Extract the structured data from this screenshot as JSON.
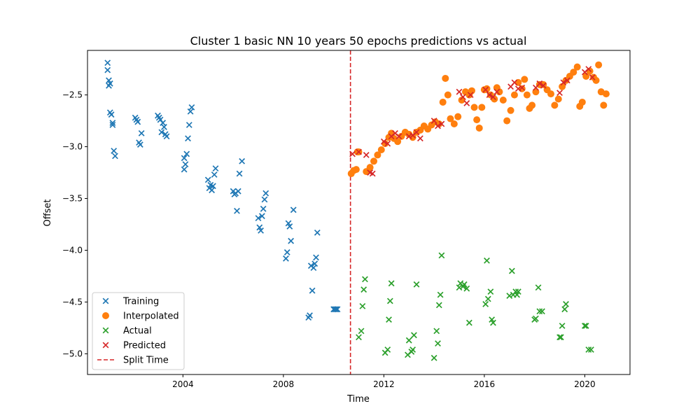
{
  "chart_data": {
    "type": "scatter",
    "title": "Cluster 1 basic NN 10 years 50 epochs predictions vs actual",
    "xlabel": "Time",
    "ylabel": "Offset",
    "xlim": [
      2000.2,
      2021.8
    ],
    "ylim": [
      -5.2,
      -2.07
    ],
    "xticks": [
      2004,
      2008,
      2012,
      2016,
      2020
    ],
    "yticks": [
      -2.5,
      -3.0,
      -3.5,
      -4.0,
      -4.5,
      -5.0
    ],
    "xtick_labels": [
      "2004",
      "2008",
      "2012",
      "2016",
      "2020"
    ],
    "ytick_labels": [
      "−2.5",
      "−3.0",
      "−3.5",
      "−4.0",
      "−4.5",
      "−5.0"
    ],
    "grid": false,
    "legend_position": "lower-left",
    "split_time": 2010.67,
    "series": [
      {
        "name": "Training",
        "marker": "x",
        "color": "#1f77b4",
        "points": [
          [
            2001.0,
            -2.19
          ],
          [
            2001.0,
            -2.26
          ],
          [
            2001.05,
            -2.36
          ],
          [
            2001.05,
            -2.41
          ],
          [
            2001.1,
            -2.39
          ],
          [
            2001.1,
            -2.67
          ],
          [
            2001.15,
            -2.69
          ],
          [
            2001.2,
            -2.77
          ],
          [
            2001.2,
            -2.79
          ],
          [
            2001.25,
            -3.04
          ],
          [
            2001.3,
            -3.09
          ],
          [
            2002.1,
            -2.72
          ],
          [
            2002.15,
            -2.74
          ],
          [
            2002.2,
            -2.76
          ],
          [
            2002.25,
            -2.96
          ],
          [
            2002.3,
            -2.98
          ],
          [
            2002.35,
            -2.87
          ],
          [
            2003.0,
            -2.7
          ],
          [
            2003.05,
            -2.72
          ],
          [
            2003.1,
            -2.74
          ],
          [
            2003.15,
            -2.86
          ],
          [
            2003.2,
            -2.77
          ],
          [
            2003.25,
            -2.81
          ],
          [
            2003.3,
            -2.88
          ],
          [
            2003.35,
            -2.9
          ],
          [
            2004.05,
            -3.11
          ],
          [
            2004.05,
            -3.22
          ],
          [
            2004.1,
            -3.17
          ],
          [
            2004.15,
            -3.07
          ],
          [
            2004.2,
            -2.92
          ],
          [
            2004.25,
            -2.79
          ],
          [
            2004.3,
            -2.66
          ],
          [
            2004.35,
            -2.62
          ],
          [
            2005.0,
            -3.32
          ],
          [
            2005.05,
            -3.4
          ],
          [
            2005.1,
            -3.37
          ],
          [
            2005.15,
            -3.42
          ],
          [
            2005.2,
            -3.38
          ],
          [
            2005.25,
            -3.27
          ],
          [
            2005.3,
            -3.21
          ],
          [
            2006.0,
            -3.43
          ],
          [
            2006.05,
            -3.46
          ],
          [
            2006.1,
            -3.45
          ],
          [
            2006.15,
            -3.62
          ],
          [
            2006.2,
            -3.43
          ],
          [
            2006.25,
            -3.26
          ],
          [
            2006.35,
            -3.14
          ],
          [
            2007.0,
            -3.69
          ],
          [
            2007.05,
            -3.78
          ],
          [
            2007.1,
            -3.81
          ],
          [
            2007.15,
            -3.67
          ],
          [
            2007.2,
            -3.6
          ],
          [
            2007.25,
            -3.51
          ],
          [
            2007.3,
            -3.45
          ],
          [
            2008.1,
            -4.08
          ],
          [
            2008.15,
            -4.02
          ],
          [
            2008.2,
            -3.74
          ],
          [
            2008.25,
            -3.77
          ],
          [
            2008.3,
            -3.91
          ],
          [
            2008.4,
            -3.61
          ],
          [
            2009.0,
            -4.65
          ],
          [
            2009.05,
            -4.63
          ],
          [
            2009.1,
            -4.15
          ],
          [
            2009.15,
            -4.39
          ],
          [
            2009.2,
            -4.17
          ],
          [
            2009.25,
            -4.13
          ],
          [
            2009.3,
            -4.07
          ],
          [
            2009.35,
            -3.83
          ],
          [
            2010.0,
            -4.57
          ],
          [
            2010.05,
            -4.57
          ],
          [
            2010.1,
            -4.57
          ],
          [
            2010.15,
            -4.57
          ]
        ]
      },
      {
        "name": "Interpolated",
        "marker": "o",
        "color": "#ff7f0e",
        "points": [
          [
            2010.7,
            -3.26
          ],
          [
            2010.8,
            -3.23
          ],
          [
            2010.9,
            -3.22
          ],
          [
            2010.95,
            -3.05
          ],
          [
            2011.0,
            -3.05
          ],
          [
            2011.3,
            -3.24
          ],
          [
            2011.45,
            -3.2
          ],
          [
            2011.6,
            -3.14
          ],
          [
            2011.75,
            -3.08
          ],
          [
            2011.9,
            -3.03
          ],
          [
            2012.05,
            -2.97
          ],
          [
            2012.2,
            -2.91
          ],
          [
            2012.3,
            -2.87
          ],
          [
            2012.4,
            -2.92
          ],
          [
            2012.55,
            -2.95
          ],
          [
            2012.7,
            -2.9
          ],
          [
            2012.85,
            -2.86
          ],
          [
            2013.0,
            -2.88
          ],
          [
            2013.15,
            -2.91
          ],
          [
            2013.3,
            -2.86
          ],
          [
            2013.45,
            -2.84
          ],
          [
            2013.6,
            -2.8
          ],
          [
            2013.75,
            -2.83
          ],
          [
            2013.9,
            -2.79
          ],
          [
            2014.05,
            -2.76
          ],
          [
            2014.2,
            -2.78
          ],
          [
            2014.35,
            -2.57
          ],
          [
            2014.45,
            -2.34
          ],
          [
            2014.55,
            -2.5
          ],
          [
            2014.65,
            -2.73
          ],
          [
            2014.8,
            -2.78
          ],
          [
            2014.95,
            -2.71
          ],
          [
            2015.1,
            -2.55
          ],
          [
            2015.25,
            -2.47
          ],
          [
            2015.4,
            -2.5
          ],
          [
            2015.5,
            -2.46
          ],
          [
            2015.6,
            -2.62
          ],
          [
            2015.7,
            -2.74
          ],
          [
            2015.8,
            -2.82
          ],
          [
            2015.9,
            -2.62
          ],
          [
            2016.0,
            -2.45
          ],
          [
            2016.1,
            -2.44
          ],
          [
            2016.25,
            -2.5
          ],
          [
            2016.4,
            -2.54
          ],
          [
            2016.5,
            -2.43
          ],
          [
            2016.6,
            -2.47
          ],
          [
            2016.75,
            -2.55
          ],
          [
            2016.9,
            -2.75
          ],
          [
            2017.05,
            -2.65
          ],
          [
            2017.2,
            -2.5
          ],
          [
            2017.35,
            -2.38
          ],
          [
            2017.5,
            -2.44
          ],
          [
            2017.6,
            -2.35
          ],
          [
            2017.7,
            -2.5
          ],
          [
            2017.8,
            -2.63
          ],
          [
            2017.9,
            -2.6
          ],
          [
            2018.05,
            -2.47
          ],
          [
            2018.2,
            -2.4
          ],
          [
            2018.35,
            -2.4
          ],
          [
            2018.5,
            -2.45
          ],
          [
            2018.65,
            -2.49
          ],
          [
            2018.8,
            -2.6
          ],
          [
            2018.95,
            -2.54
          ],
          [
            2019.1,
            -2.42
          ],
          [
            2019.25,
            -2.36
          ],
          [
            2019.4,
            -2.32
          ],
          [
            2019.55,
            -2.28
          ],
          [
            2019.7,
            -2.23
          ],
          [
            2019.8,
            -2.61
          ],
          [
            2019.9,
            -2.57
          ],
          [
            2020.05,
            -2.32
          ],
          [
            2020.2,
            -2.27
          ],
          [
            2020.35,
            -2.33
          ],
          [
            2020.45,
            -2.36
          ],
          [
            2020.55,
            -2.21
          ],
          [
            2020.65,
            -2.47
          ],
          [
            2020.75,
            -2.6
          ],
          [
            2020.85,
            -2.49
          ]
        ]
      },
      {
        "name": "Actual",
        "marker": "x",
        "color": "#2ca02c",
        "points": [
          [
            2011.0,
            -4.84
          ],
          [
            2011.1,
            -4.78
          ],
          [
            2011.15,
            -4.54
          ],
          [
            2011.2,
            -4.38
          ],
          [
            2011.25,
            -4.28
          ],
          [
            2012.05,
            -4.99
          ],
          [
            2012.15,
            -4.96
          ],
          [
            2012.2,
            -4.67
          ],
          [
            2012.25,
            -4.49
          ],
          [
            2012.3,
            -4.32
          ],
          [
            2012.95,
            -5.01
          ],
          [
            2013.0,
            -4.87
          ],
          [
            2013.1,
            -4.98
          ],
          [
            2013.15,
            -4.96
          ],
          [
            2013.2,
            -4.82
          ],
          [
            2013.3,
            -4.33
          ],
          [
            2014.0,
            -5.04
          ],
          [
            2014.1,
            -4.78
          ],
          [
            2014.15,
            -4.9
          ],
          [
            2014.2,
            -4.53
          ],
          [
            2014.25,
            -4.43
          ],
          [
            2014.3,
            -4.05
          ],
          [
            2015.0,
            -4.36
          ],
          [
            2015.05,
            -4.32
          ],
          [
            2015.15,
            -4.35
          ],
          [
            2015.2,
            -4.33
          ],
          [
            2015.3,
            -4.37
          ],
          [
            2015.4,
            -4.7
          ],
          [
            2016.05,
            -4.52
          ],
          [
            2016.1,
            -4.1
          ],
          [
            2016.15,
            -4.47
          ],
          [
            2016.25,
            -4.4
          ],
          [
            2016.3,
            -4.67
          ],
          [
            2016.35,
            -4.7
          ],
          [
            2017.0,
            -4.44
          ],
          [
            2017.1,
            -4.2
          ],
          [
            2017.15,
            -4.43
          ],
          [
            2017.25,
            -4.4
          ],
          [
            2017.3,
            -4.43
          ],
          [
            2017.35,
            -4.4
          ],
          [
            2018.0,
            -4.67
          ],
          [
            2018.05,
            -4.66
          ],
          [
            2018.15,
            -4.36
          ],
          [
            2018.2,
            -4.59
          ],
          [
            2018.3,
            -4.59
          ],
          [
            2019.0,
            -4.84
          ],
          [
            2019.05,
            -4.84
          ],
          [
            2019.1,
            -4.73
          ],
          [
            2019.2,
            -4.57
          ],
          [
            2019.25,
            -4.52
          ],
          [
            2020.0,
            -4.73
          ],
          [
            2020.05,
            -4.73
          ],
          [
            2020.15,
            -4.96
          ],
          [
            2020.25,
            -4.96
          ]
        ]
      },
      {
        "name": "Predicted",
        "marker": "x",
        "color": "#d62728",
        "points": [
          [
            2010.75,
            -3.07
          ],
          [
            2011.0,
            -3.05
          ],
          [
            2011.3,
            -3.08
          ],
          [
            2011.45,
            -3.25
          ],
          [
            2011.55,
            -3.26
          ],
          [
            2012.0,
            -2.95
          ],
          [
            2012.15,
            -2.97
          ],
          [
            2012.3,
            -2.9
          ],
          [
            2012.45,
            -2.87
          ],
          [
            2012.6,
            -2.9
          ],
          [
            2013.0,
            -2.9
          ],
          [
            2013.15,
            -2.89
          ],
          [
            2013.3,
            -2.86
          ],
          [
            2013.45,
            -2.92
          ],
          [
            2014.0,
            -2.75
          ],
          [
            2014.15,
            -2.8
          ],
          [
            2014.3,
            -2.78
          ],
          [
            2015.0,
            -2.47
          ],
          [
            2015.15,
            -2.52
          ],
          [
            2015.3,
            -2.58
          ],
          [
            2015.45,
            -2.5
          ],
          [
            2016.05,
            -2.45
          ],
          [
            2016.2,
            -2.5
          ],
          [
            2016.35,
            -2.52
          ],
          [
            2016.5,
            -2.47
          ],
          [
            2017.05,
            -2.42
          ],
          [
            2017.2,
            -2.38
          ],
          [
            2017.35,
            -2.44
          ],
          [
            2017.5,
            -2.43
          ],
          [
            2018.05,
            -2.43
          ],
          [
            2018.2,
            -2.39
          ],
          [
            2018.35,
            -2.41
          ],
          [
            2019.0,
            -2.48
          ],
          [
            2019.15,
            -2.38
          ],
          [
            2019.3,
            -2.36
          ],
          [
            2020.0,
            -2.28
          ],
          [
            2020.15,
            -2.25
          ],
          [
            2020.3,
            -2.33
          ]
        ]
      }
    ],
    "legend": [
      {
        "label": "Training",
        "marker": "x",
        "color": "#1f77b4"
      },
      {
        "label": "Interpolated",
        "marker": "o",
        "color": "#ff7f0e"
      },
      {
        "label": "Actual",
        "marker": "x",
        "color": "#2ca02c"
      },
      {
        "label": "Predicted",
        "marker": "x",
        "color": "#d62728"
      },
      {
        "label": "Split Time",
        "marker": "dashed-line",
        "color": "#d62728"
      }
    ]
  }
}
